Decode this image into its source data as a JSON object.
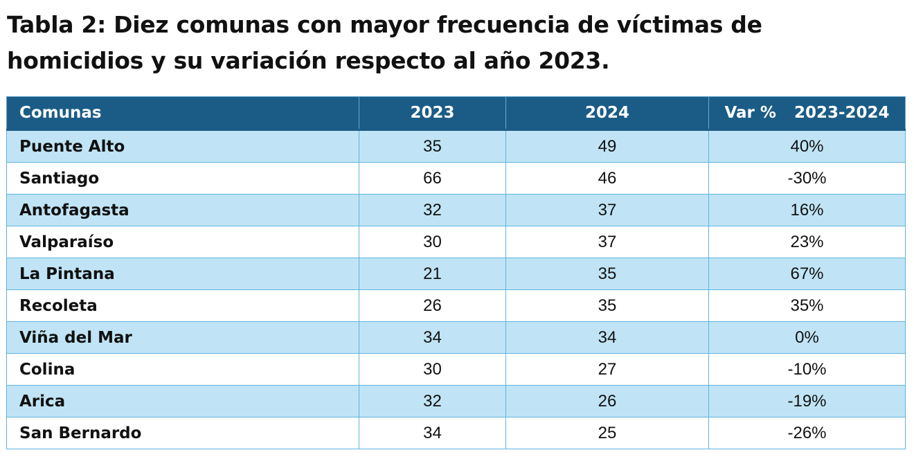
{
  "title": "Tabla 2: Diez comunas con mayor frecuencia de víctimas de homicidios y su variación respecto al año 2023.",
  "table": {
    "headers": {
      "comunas": "Comunas",
      "y2023": "2023",
      "y2024": "2024",
      "var_label": "Var %",
      "var_period": "2023-2024"
    },
    "rows": [
      {
        "comuna": "Puente Alto",
        "y2023": "35",
        "y2024": "49",
        "var": "40%"
      },
      {
        "comuna": "Santiago",
        "y2023": "66",
        "y2024": "46",
        "var": "-30%"
      },
      {
        "comuna": "Antofagasta",
        "y2023": "32",
        "y2024": "37",
        "var": "16%"
      },
      {
        "comuna": "Valparaíso",
        "y2023": "30",
        "y2024": "37",
        "var": "23%"
      },
      {
        "comuna": "La Pintana",
        "y2023": "21",
        "y2024": "35",
        "var": "67%"
      },
      {
        "comuna": "Recoleta",
        "y2023": "26",
        "y2024": "35",
        "var": "35%"
      },
      {
        "comuna": "Viña del Mar",
        "y2023": "34",
        "y2024": "34",
        "var": "0%"
      },
      {
        "comuna": "Colina",
        "y2023": "30",
        "y2024": "27",
        "var": "-10%"
      },
      {
        "comuna": "Arica",
        "y2023": "32",
        "y2024": "26",
        "var": "-19%"
      },
      {
        "comuna": "San Bernardo",
        "y2023": "34",
        "y2024": "25",
        "var": "-26%"
      }
    ]
  },
  "colors": {
    "header_bg": "#1b5c86",
    "row_alt_bg": "#c0e4f5",
    "border": "#5eb3df"
  }
}
